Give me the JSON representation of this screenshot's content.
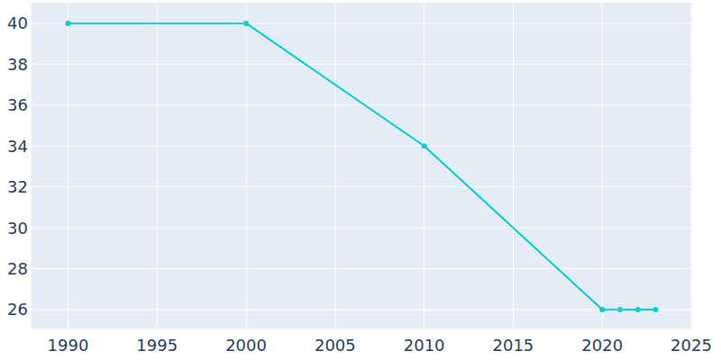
{
  "chart_data": {
    "type": "line",
    "x": [
      1990,
      2000,
      2010,
      2020,
      2021,
      2022,
      2023
    ],
    "values": [
      40,
      40,
      34,
      26,
      26,
      26,
      26
    ],
    "color": "#00ced1",
    "marker": "circle",
    "xlim": [
      1987.9,
      2025.05
    ],
    "xticks": [
      1990,
      1995,
      2000,
      2005,
      2010,
      2015,
      2020,
      2025
    ],
    "ylim": [
      25.03,
      41.01
    ],
    "yticks": [
      26,
      28,
      30,
      32,
      34,
      36,
      38,
      40
    ],
    "grid": true
  }
}
